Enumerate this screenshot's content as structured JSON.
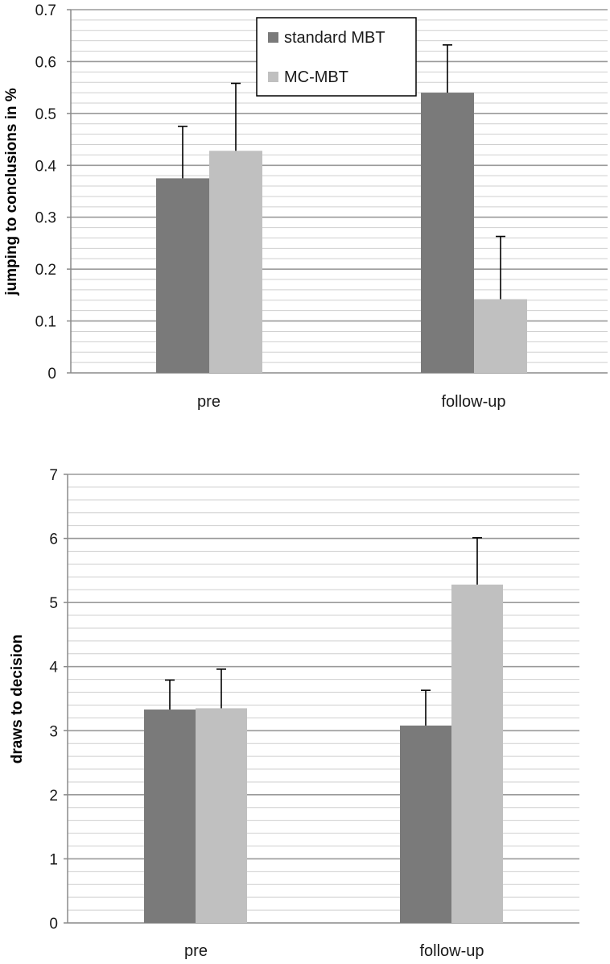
{
  "chart_data": [
    {
      "type": "bar",
      "title": "",
      "xlabel": "",
      "ylabel": "jumping to conclusions in %",
      "categories": [
        "pre",
        "follow-up"
      ],
      "ylim": [
        0,
        0.7
      ],
      "yticks": [
        0,
        0.1,
        0.2,
        0.3,
        0.4,
        0.5,
        0.6,
        0.7
      ],
      "yticklabels": [
        "0",
        "0.1",
        "0.2",
        "0.3",
        "0.4",
        "0.5",
        "0.6",
        "0.7"
      ],
      "legend_position": "top-center",
      "series": [
        {
          "name": "standard MBT",
          "color": "#7a7a7a",
          "values": [
            0.375,
            0.54
          ],
          "error_upper": [
            0.475,
            0.632
          ]
        },
        {
          "name": "MC-MBT",
          "color": "#c0c0c0",
          "values": [
            0.428,
            0.142
          ],
          "error_upper": [
            0.558,
            0.263
          ]
        }
      ],
      "grid": true
    },
    {
      "type": "bar",
      "title": "",
      "xlabel": "",
      "ylabel": "draws to decision",
      "categories": [
        "pre",
        "follow-up"
      ],
      "ylim": [
        0,
        7
      ],
      "yticks": [
        0,
        1,
        2,
        3,
        4,
        5,
        6,
        7
      ],
      "yticklabels": [
        "0",
        "1",
        "2",
        "3",
        "4",
        "5",
        "6",
        "7"
      ],
      "series": [
        {
          "name": "standard MBT",
          "color": "#7a7a7a",
          "values": [
            3.33,
            3.08
          ],
          "error_upper": [
            3.79,
            3.63
          ]
        },
        {
          "name": "MC-MBT",
          "color": "#c0c0c0",
          "values": [
            3.35,
            5.28
          ],
          "error_upper": [
            3.96,
            6.01
          ]
        }
      ],
      "grid": true
    }
  ]
}
